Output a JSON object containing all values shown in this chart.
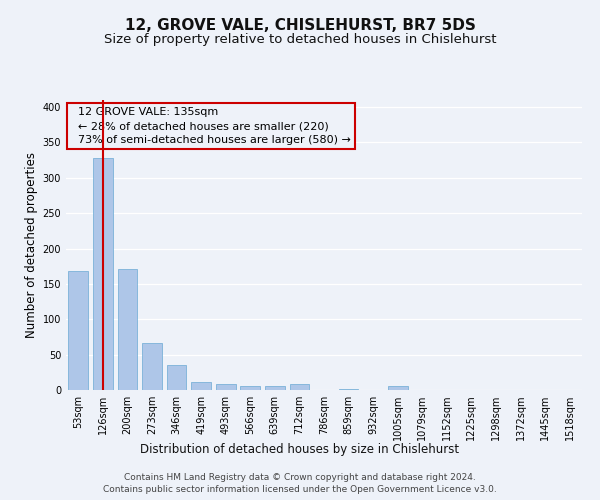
{
  "title": "12, GROVE VALE, CHISLEHURST, BR7 5DS",
  "subtitle": "Size of property relative to detached houses in Chislehurst",
  "xlabel": "Distribution of detached houses by size in Chislehurst",
  "ylabel": "Number of detached properties",
  "footer_line1": "Contains HM Land Registry data © Crown copyright and database right 2024.",
  "footer_line2": "Contains public sector information licensed under the Open Government Licence v3.0.",
  "categories": [
    "53sqm",
    "126sqm",
    "200sqm",
    "273sqm",
    "346sqm",
    "419sqm",
    "493sqm",
    "566sqm",
    "639sqm",
    "712sqm",
    "786sqm",
    "859sqm",
    "932sqm",
    "1005sqm",
    "1079sqm",
    "1152sqm",
    "1225sqm",
    "1298sqm",
    "1372sqm",
    "1445sqm",
    "1518sqm"
  ],
  "values": [
    168,
    328,
    171,
    67,
    36,
    12,
    9,
    5,
    5,
    9,
    0,
    2,
    0,
    5,
    0,
    0,
    0,
    0,
    0,
    0,
    0
  ],
  "bar_color": "#aec6e8",
  "bar_edge_color": "#6aaad4",
  "vline_x": 1.0,
  "vline_color": "#cc0000",
  "box_edge_color": "#cc0000",
  "highlight_label": "12 GROVE VALE: 135sqm",
  "pct_smaller_label": "← 28% of detached houses are smaller (220)",
  "pct_larger_label": "73% of semi-detached houses are larger (580) →",
  "ylim": [
    0,
    410
  ],
  "yticks": [
    0,
    50,
    100,
    150,
    200,
    250,
    300,
    350,
    400
  ],
  "background_color": "#eef2f9",
  "grid_color": "#ffffff",
  "title_fontsize": 11,
  "subtitle_fontsize": 9.5,
  "axis_label_fontsize": 8.5,
  "tick_fontsize": 7,
  "annotation_fontsize": 8,
  "footer_fontsize": 6.5
}
